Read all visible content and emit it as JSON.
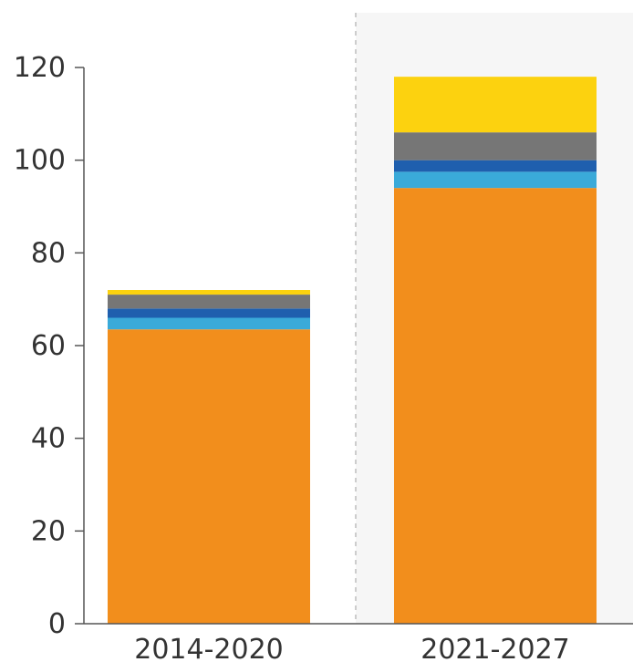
{
  "chart_data": {
    "type": "bar",
    "stacked": true,
    "categories": [
      "2014-2020",
      "2021-2027"
    ],
    "series": [
      {
        "color": "#F28E1C",
        "values": [
          63.5,
          94
        ]
      },
      {
        "color": "#3AAAD9",
        "values": [
          2.5,
          3.5
        ]
      },
      {
        "color": "#1F5FAE",
        "values": [
          2,
          2.5
        ]
      },
      {
        "color": "#767676",
        "values": [
          3,
          6
        ]
      },
      {
        "color": "#FCD20F",
        "values": [
          1,
          12
        ]
      }
    ],
    "yticks": [
      "0",
      "20",
      "40",
      "60",
      "80",
      "100",
      "120"
    ],
    "ylim": [
      0,
      120
    ],
    "grid": false,
    "legend": "none",
    "highlight_category": "2021-2027",
    "highlight_color": "#F6F6F6"
  }
}
